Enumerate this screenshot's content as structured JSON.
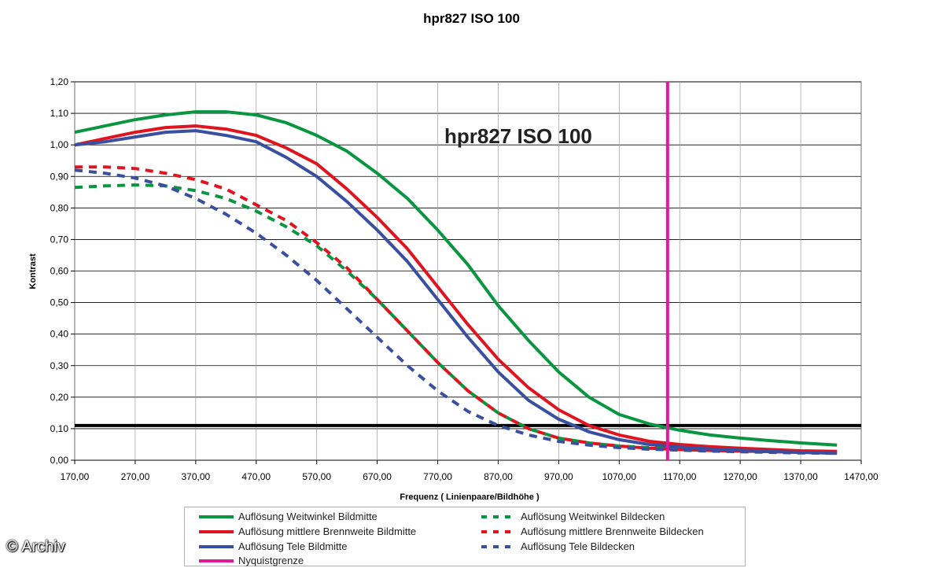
{
  "chart_data": {
    "type": "line",
    "title": "hpr827 ISO 100",
    "annotation": "hpr827 ISO 100",
    "xlabel": "Frequenz ( Linienpaare/Bildhöhe )",
    "ylabel": "Kontrast",
    "xlim": [
      170,
      1470
    ],
    "ylim": [
      0,
      1.2
    ],
    "xticks": [
      "170,00",
      "270,00",
      "370,00",
      "470,00",
      "570,00",
      "670,00",
      "770,00",
      "870,00",
      "970,00",
      "1070,00",
      "1170,00",
      "1270,00",
      "1370,00",
      "1470,00"
    ],
    "yticks": [
      "0,00",
      "0,10",
      "0,20",
      "0,30",
      "0,40",
      "0,50",
      "0,60",
      "0,70",
      "0,80",
      "0,90",
      "1,00",
      "1,10",
      "1,20"
    ],
    "grid": true,
    "legend_position": "bottom",
    "reference_lines": {
      "nyquist_x": 1150,
      "threshold_y": 0.11
    },
    "series": [
      {
        "name": "Auflösung Weitwinkel Bildmitte",
        "color": "#0a9640",
        "style": "solid",
        "x": [
          170,
          220,
          270,
          320,
          370,
          420,
          470,
          520,
          570,
          620,
          670,
          720,
          770,
          820,
          870,
          920,
          970,
          1020,
          1070,
          1120,
          1170,
          1220,
          1270,
          1320,
          1370,
          1430
        ],
        "y": [
          1.04,
          1.06,
          1.08,
          1.095,
          1.105,
          1.105,
          1.095,
          1.07,
          1.03,
          0.98,
          0.91,
          0.83,
          0.73,
          0.62,
          0.49,
          0.38,
          0.28,
          0.2,
          0.145,
          0.115,
          0.095,
          0.08,
          0.07,
          0.062,
          0.055,
          0.048
        ]
      },
      {
        "name": "Auflösung mittlere Brennweite Bildmitte",
        "color": "#e0141e",
        "style": "solid",
        "x": [
          170,
          220,
          270,
          320,
          370,
          420,
          470,
          520,
          570,
          620,
          670,
          720,
          770,
          820,
          870,
          920,
          970,
          1020,
          1070,
          1120,
          1170,
          1220,
          1270,
          1320,
          1370,
          1430
        ],
        "y": [
          1.0,
          1.02,
          1.04,
          1.055,
          1.06,
          1.05,
          1.03,
          0.99,
          0.94,
          0.86,
          0.77,
          0.67,
          0.55,
          0.43,
          0.32,
          0.23,
          0.16,
          0.11,
          0.08,
          0.06,
          0.05,
          0.043,
          0.038,
          0.034,
          0.03,
          0.028
        ]
      },
      {
        "name": "Auflösung Tele Bildmitte",
        "color": "#3a4fa0",
        "style": "solid",
        "x": [
          170,
          220,
          270,
          320,
          370,
          420,
          470,
          520,
          570,
          620,
          670,
          720,
          770,
          820,
          870,
          920,
          970,
          1020,
          1070,
          1120,
          1170,
          1220,
          1270,
          1320,
          1370,
          1430
        ],
        "y": [
          1.0,
          1.01,
          1.025,
          1.04,
          1.045,
          1.03,
          1.01,
          0.96,
          0.9,
          0.82,
          0.73,
          0.63,
          0.51,
          0.39,
          0.28,
          0.19,
          0.13,
          0.09,
          0.065,
          0.05,
          0.042,
          0.036,
          0.032,
          0.028,
          0.025,
          0.022
        ]
      },
      {
        "name": "Auflösung Weitwinkel Bildecken",
        "color": "#0a9640",
        "style": "dashed",
        "x": [
          170,
          220,
          270,
          320,
          370,
          420,
          470,
          520,
          570,
          620,
          670,
          720,
          770,
          820,
          870,
          920,
          970,
          1020,
          1070,
          1120,
          1170,
          1220,
          1270,
          1320,
          1370,
          1430
        ],
        "y": [
          0.865,
          0.87,
          0.873,
          0.87,
          0.855,
          0.83,
          0.79,
          0.74,
          0.68,
          0.6,
          0.51,
          0.41,
          0.31,
          0.22,
          0.15,
          0.1,
          0.07,
          0.055,
          0.045,
          0.04,
          0.035,
          0.032,
          0.03,
          0.028,
          0.026,
          0.025
        ]
      },
      {
        "name": "Auflösung mittlere Brennweite Bildecken",
        "color": "#e0141e",
        "style": "dashed",
        "x": [
          170,
          220,
          270,
          320,
          370,
          420,
          470,
          520,
          570,
          620,
          670,
          720,
          770,
          820,
          870,
          920,
          970,
          1020,
          1070,
          1120,
          1170,
          1220,
          1270,
          1320,
          1370,
          1430
        ],
        "y": [
          0.93,
          0.93,
          0.925,
          0.91,
          0.89,
          0.86,
          0.81,
          0.76,
          0.69,
          0.61,
          0.51,
          0.41,
          0.31,
          0.22,
          0.15,
          0.1,
          0.07,
          0.055,
          0.045,
          0.038,
          0.034,
          0.031,
          0.029,
          0.027,
          0.025,
          0.024
        ]
      },
      {
        "name": "Auflösung Tele Bildecken",
        "color": "#3a4fa0",
        "style": "dashed",
        "x": [
          170,
          220,
          270,
          320,
          370,
          420,
          470,
          520,
          570,
          620,
          670,
          720,
          770,
          820,
          870,
          920,
          970,
          1020,
          1070,
          1120,
          1170,
          1220,
          1270,
          1320,
          1370,
          1430
        ],
        "y": [
          0.92,
          0.91,
          0.895,
          0.87,
          0.83,
          0.78,
          0.72,
          0.65,
          0.57,
          0.48,
          0.39,
          0.3,
          0.22,
          0.155,
          0.11,
          0.08,
          0.06,
          0.048,
          0.04,
          0.035,
          0.032,
          0.029,
          0.027,
          0.025,
          0.023,
          0.022
        ]
      },
      {
        "name": "Nyquistgrenze",
        "color": "#e0189a",
        "style": "solid",
        "x": [
          1150,
          1150
        ],
        "y": [
          0,
          1.2
        ]
      }
    ]
  },
  "watermark": "© Archiv"
}
